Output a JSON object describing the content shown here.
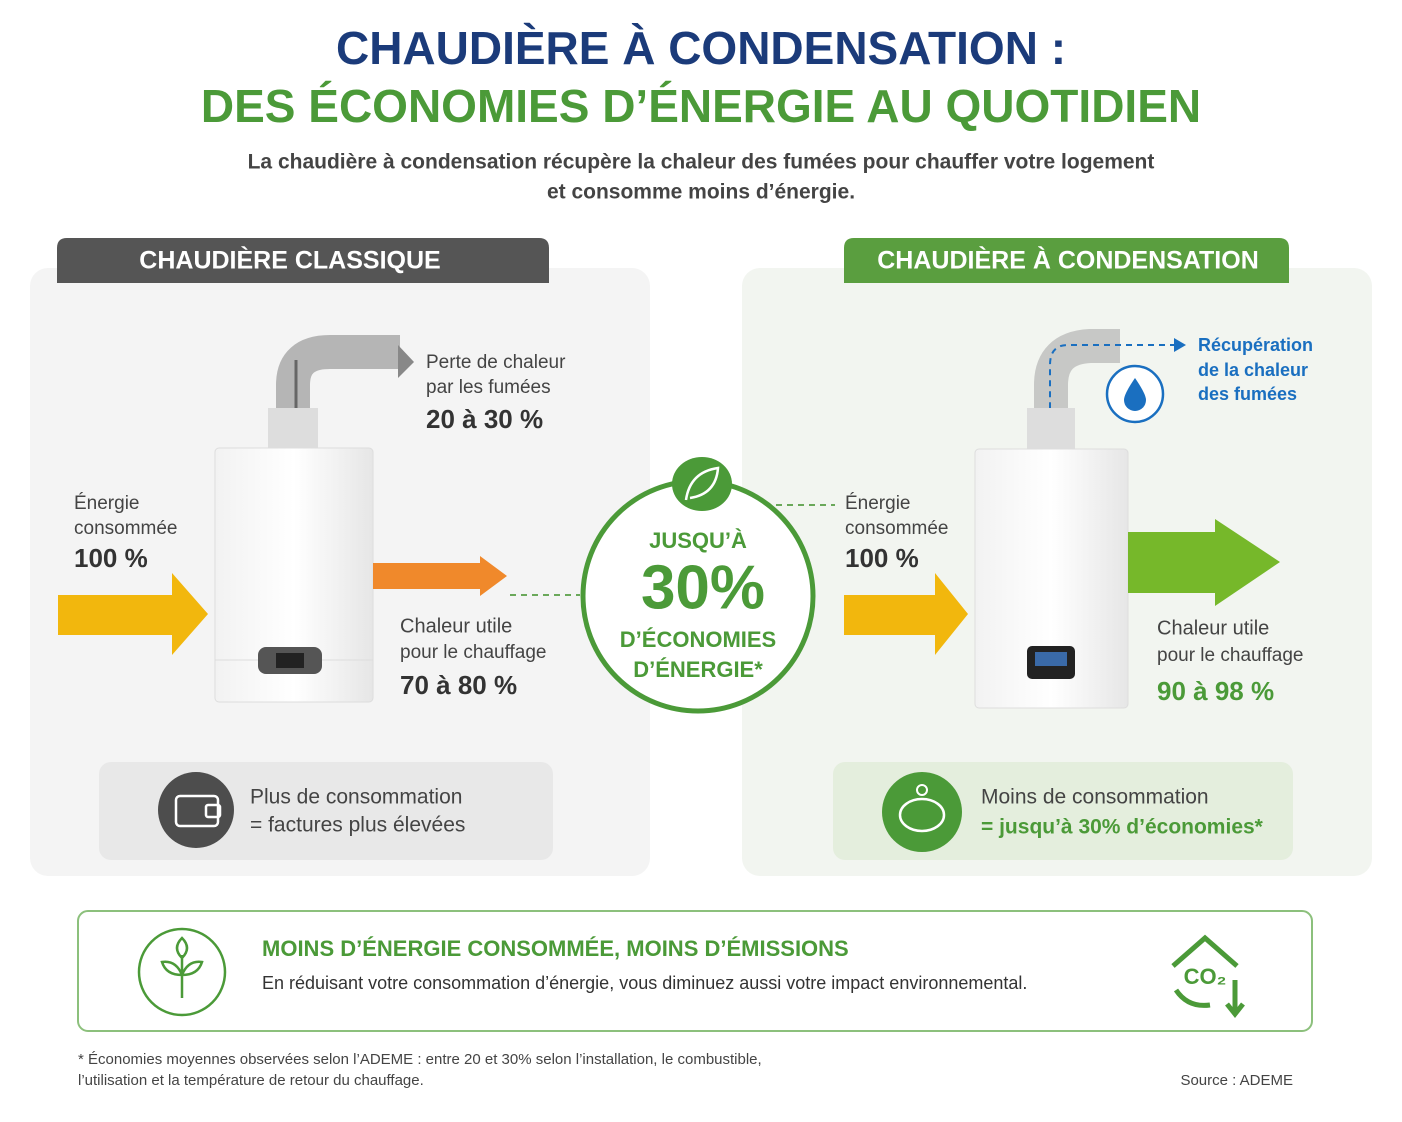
{
  "header": {
    "title_line1": "CHAUDIÈRE À CONDENSATION :",
    "title_line2": "DES ÉCONOMIES D’ÉNERGIE AU QUOTIDIEN",
    "subtitle_lines": [
      "La chaudière à condensation récupère la chaleur des fumées pour chauffer votre logement",
      "et consomme moins d’énergie."
    ]
  },
  "left_panel": {
    "title": "CHAUDIÈRE CLASSIQUE",
    "input": {
      "lines": [
        "Énergie",
        "consommée"
      ],
      "value": "100 %"
    },
    "loss": {
      "lines": [
        "Perte de chaleur",
        "par les fumées"
      ],
      "value": "20 à 30 %"
    },
    "output": {
      "lines": [
        "Chaleur utile",
        "pour le chauffage"
      ],
      "value": "70 à 80 %"
    },
    "footer": {
      "line1": "Plus de consommation",
      "line2": "= factures plus élevées"
    }
  },
  "center_badge": {
    "line1": "JUSQU’À",
    "value": "30%",
    "line2": "D’ÉCONOMIES",
    "line3": "D’ÉNERGIE*"
  },
  "right_panel": {
    "title": "CHAUDIÈRE À CONDENSATION",
    "recovery": {
      "lines": [
        "Récupération",
        "de la chaleur",
        "des fumées"
      ]
    },
    "input": {
      "lines": [
        "Énergie",
        "consommée"
      ],
      "value": "100 %"
    },
    "output": {
      "lines": [
        "Chaleur utile",
        "pour le chauffage"
      ],
      "value": "90 à 98 %"
    },
    "footer": {
      "line1": "Moins de consommation",
      "line2": "= jusqu’à 30% d’économies*"
    }
  },
  "banner": {
    "title": "MOINS D’ÉNERGIE CONSOMMÉE, MOINS D’ÉMISSIONS",
    "text": "En réduisant votre consommation d’énergie, vous diminuez aussi votre impact environnemental.",
    "icon_label": "CO₂"
  },
  "footnote": {
    "lines": [
      "* Économies moyennes observées selon l’ADEME : entre 20 et 30% selon l’installation, le combustible,",
      "l’utilisation et la température de retour du chauffage."
    ],
    "source": "Source : ADEME"
  }
}
